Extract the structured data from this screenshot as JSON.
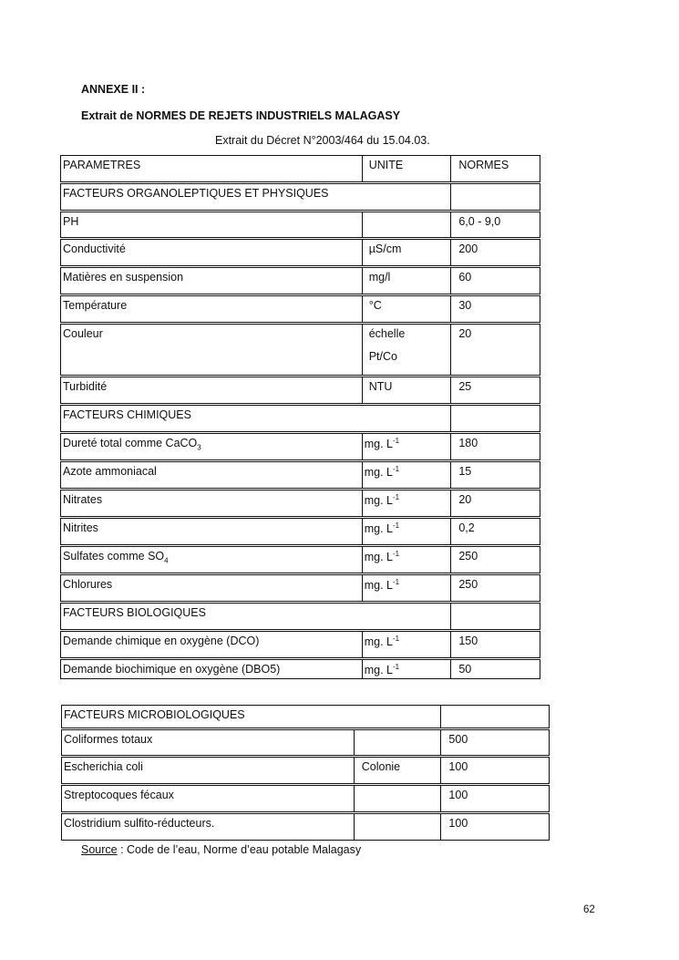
{
  "annex_title": "ANNEXE II :",
  "doc_title": "Extrait de NORMES DE REJETS INDUSTRIELS MALAGASY",
  "decree": "Extrait du Décret N°2003/464 du 15.04.03.",
  "table1": {
    "rows": [
      {
        "type": "header",
        "param": " PARAMETRES",
        "unit": "UNITE",
        "norm": "NORMES"
      },
      {
        "type": "section",
        "param": "FACTEURS ORGANOLEPTIQUES ET PHYSIQUES"
      },
      {
        "param": "PH",
        "unit": "",
        "norm": "6,0 - 9,0"
      },
      {
        "param": "Conductivité",
        "unit": "µS/cm",
        "norm": "200"
      },
      {
        "param": "Matières en suspension",
        "unit": "mg/l",
        "norm": "60"
      },
      {
        "param": "Température",
        "unit": "°C",
        "norm": "30"
      },
      {
        "param": "Couleur",
        "unit": "échelle",
        "unit_line2": "Pt/Co",
        "norm": "20"
      },
      {
        "param": "Turbidité",
        "unit": "NTU",
        "norm": "25"
      },
      {
        "type": "section",
        "param": "FACTEURS CHIMIQUES"
      },
      {
        "param": "Dureté total comme CaCO",
        "param_sub": "3",
        "unit": "mg. L",
        "unit_sup": "-1",
        "norm": "180"
      },
      {
        "param": "Azote ammoniacal",
        "unit": "mg. L",
        "unit_sup": "-1",
        "norm": "15"
      },
      {
        "param": "Nitrates",
        "unit": "mg. L",
        "unit_sup": "-1",
        "norm": "20"
      },
      {
        "param": "Nitrites",
        "unit": "mg. L",
        "unit_sup": "-1",
        "norm": "0,2"
      },
      {
        "param": "Sulfates comme SO",
        "param_sub": "4",
        "unit": "mg. L",
        "unit_sup": "-1",
        "norm": "250"
      },
      {
        "param": "Chlorures",
        "unit": "mg. L",
        "unit_sup": "-1",
        "norm": "250"
      },
      {
        "type": "section",
        "param": "FACTEURS BIOLOGIQUES"
      },
      {
        "param": "Demande chimique en oxygène (DCO)",
        "unit": "mg. L",
        "unit_sup": "-1",
        "norm": "150"
      },
      {
        "param": "Demande biochimique en oxygène (DBO5)",
        "unit": "mg. L",
        "unit_sup": "-1",
        "norm": "50"
      }
    ]
  },
  "table2": {
    "rows": [
      {
        "type": "section",
        "param": "FACTEURS MICROBIOLOGIQUES"
      },
      {
        "param": "Coliformes totaux",
        "unit": "",
        "norm": "500"
      },
      {
        "param": "Escherichia coli",
        "unit": "Colonie",
        "norm": "100"
      },
      {
        "param": "Streptocoques fécaux",
        "unit": "",
        "norm": "100"
      },
      {
        "param": "Clostridium sulfito-réducteurs.",
        "unit": "",
        "norm": "100"
      }
    ]
  },
  "source": {
    "label": "Source",
    "text": " : Code de l’eau, Norme d’eau potable Malagasy"
  },
  "page_number": "62"
}
